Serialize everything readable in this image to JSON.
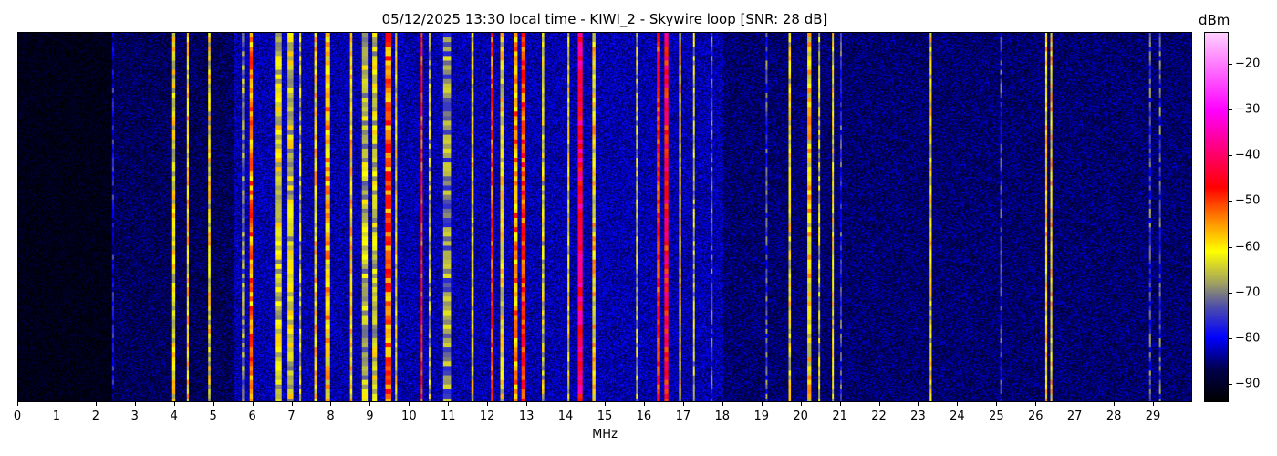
{
  "chart_data": {
    "type": "heatmap",
    "title": "05/12/2025 13:30 local time - KIWI_2 - Skywire loop [SNR: 28 dB]",
    "xlabel": "MHz",
    "xlim": [
      0,
      30
    ],
    "xticks": [
      "0",
      "1",
      "2",
      "3",
      "4",
      "5",
      "6",
      "7",
      "8",
      "9",
      "10",
      "11",
      "12",
      "13",
      "14",
      "15",
      "16",
      "17",
      "18",
      "19",
      "20",
      "21",
      "22",
      "23",
      "24",
      "25",
      "26",
      "27",
      "28",
      "29"
    ],
    "colorbar": {
      "label": "dBm",
      "range": [
        -94,
        -13
      ],
      "ticks": [
        "−20",
        "−30",
        "−40",
        "−50",
        "−60",
        "−70",
        "−80",
        "−90"
      ],
      "tick_values": [
        -20,
        -30,
        -40,
        -50,
        -60,
        -70,
        -80,
        -90
      ],
      "colormap": [
        {
          "v": -94,
          "c": "#000000"
        },
        {
          "v": -87,
          "c": "#00004a"
        },
        {
          "v": -80,
          "c": "#0000ff"
        },
        {
          "v": -73,
          "c": "#5050a8"
        },
        {
          "v": -68,
          "c": "#a0a060"
        },
        {
          "v": -61,
          "c": "#ffff00"
        },
        {
          "v": -55,
          "c": "#ff9900"
        },
        {
          "v": -47,
          "c": "#ff0000"
        },
        {
          "v": -40,
          "c": "#ff0066"
        },
        {
          "v": -30,
          "c": "#ff00ff"
        },
        {
          "v": -13,
          "c": "#ffd0ff"
        }
      ]
    },
    "noise_floor": [
      {
        "from": 0,
        "to": 2.4,
        "dbm": -91
      },
      {
        "from": 2.4,
        "to": 5.5,
        "dbm": -86
      },
      {
        "from": 5.5,
        "to": 18,
        "dbm": -82
      },
      {
        "from": 18,
        "to": 30,
        "dbm": -85
      }
    ],
    "signals": [
      {
        "mhz": 2.42,
        "width": 0.05,
        "dbm": -80
      },
      {
        "mhz": 3.97,
        "width": 0.08,
        "dbm": -62
      },
      {
        "mhz": 4.33,
        "width": 0.05,
        "dbm": -60
      },
      {
        "mhz": 4.88,
        "width": 0.06,
        "dbm": -62
      },
      {
        "mhz": 5.75,
        "width": 0.08,
        "dbm": -70
      },
      {
        "mhz": 5.95,
        "width": 0.08,
        "dbm": -54
      },
      {
        "mhz": 6.65,
        "width": 0.15,
        "dbm": -63
      },
      {
        "mhz": 6.95,
        "width": 0.15,
        "dbm": -64
      },
      {
        "mhz": 7.2,
        "width": 0.05,
        "dbm": -66
      },
      {
        "mhz": 7.6,
        "width": 0.08,
        "dbm": -60
      },
      {
        "mhz": 7.9,
        "width": 0.12,
        "dbm": -58
      },
      {
        "mhz": 8.5,
        "width": 0.06,
        "dbm": -60
      },
      {
        "mhz": 8.85,
        "width": 0.15,
        "dbm": -66
      },
      {
        "mhz": 9.1,
        "width": 0.12,
        "dbm": -64
      },
      {
        "mhz": 9.45,
        "width": 0.15,
        "dbm": -52
      },
      {
        "mhz": 9.65,
        "width": 0.05,
        "dbm": -62
      },
      {
        "mhz": 10.3,
        "width": 0.04,
        "dbm": -48
      },
      {
        "mhz": 10.5,
        "width": 0.04,
        "dbm": -66
      },
      {
        "mhz": 10.95,
        "width": 0.2,
        "dbm": -70
      },
      {
        "mhz": 11.6,
        "width": 0.06,
        "dbm": -62
      },
      {
        "mhz": 12.1,
        "width": 0.06,
        "dbm": -50
      },
      {
        "mhz": 12.35,
        "width": 0.08,
        "dbm": -62
      },
      {
        "mhz": 12.7,
        "width": 0.1,
        "dbm": -55
      },
      {
        "mhz": 12.9,
        "width": 0.1,
        "dbm": -50
      },
      {
        "mhz": 13.4,
        "width": 0.06,
        "dbm": -64
      },
      {
        "mhz": 14.05,
        "width": 0.05,
        "dbm": -62
      },
      {
        "mhz": 14.35,
        "width": 0.12,
        "dbm": -42
      },
      {
        "mhz": 14.7,
        "width": 0.08,
        "dbm": -60
      },
      {
        "mhz": 15.8,
        "width": 0.05,
        "dbm": -66
      },
      {
        "mhz": 16.35,
        "width": 0.08,
        "dbm": -48
      },
      {
        "mhz": 16.55,
        "width": 0.1,
        "dbm": -45
      },
      {
        "mhz": 16.9,
        "width": 0.05,
        "dbm": -60
      },
      {
        "mhz": 17.25,
        "width": 0.04,
        "dbm": -66
      },
      {
        "mhz": 17.7,
        "width": 0.03,
        "dbm": -74
      },
      {
        "mhz": 19.1,
        "width": 0.03,
        "dbm": -74
      },
      {
        "mhz": 19.7,
        "width": 0.06,
        "dbm": -62
      },
      {
        "mhz": 20.2,
        "width": 0.1,
        "dbm": -60
      },
      {
        "mhz": 20.45,
        "width": 0.04,
        "dbm": -66
      },
      {
        "mhz": 20.8,
        "width": 0.04,
        "dbm": -62
      },
      {
        "mhz": 21.0,
        "width": 0.03,
        "dbm": -76
      },
      {
        "mhz": 23.3,
        "width": 0.05,
        "dbm": -62
      },
      {
        "mhz": 25.1,
        "width": 0.05,
        "dbm": -76
      },
      {
        "mhz": 26.25,
        "width": 0.05,
        "dbm": -60
      },
      {
        "mhz": 26.38,
        "width": 0.05,
        "dbm": -60
      },
      {
        "mhz": 28.9,
        "width": 0.05,
        "dbm": -74
      },
      {
        "mhz": 29.15,
        "width": 0.04,
        "dbm": -74
      }
    ]
  }
}
